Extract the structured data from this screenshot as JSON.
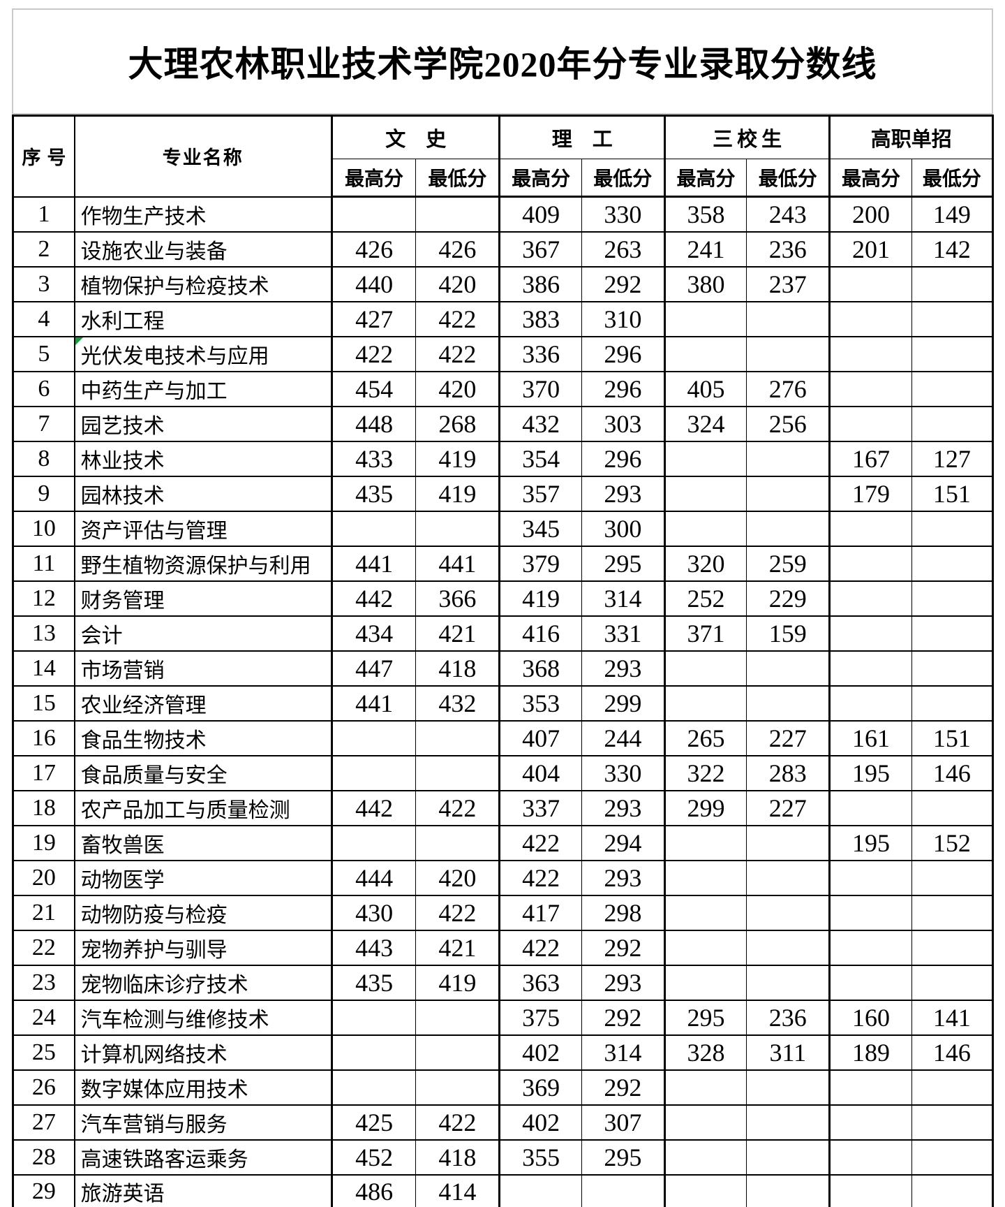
{
  "page": {
    "title": "大理农林职业技术学院2020年分专业录取分数线"
  },
  "colors": {
    "background": "#ffffff",
    "table_border": "#000000",
    "title_block_border": "#c9c9c9",
    "error_marker_green": "#189b3f"
  },
  "table": {
    "header": {
      "index_label": "序号",
      "major_label": "专业名称",
      "groups": [
        {
          "label": "文　史"
        },
        {
          "label": "理　工"
        },
        {
          "label": "三校生"
        },
        {
          "label": "高职单招"
        }
      ],
      "max_label": "最高分",
      "min_label": "最低分"
    },
    "rows": [
      {
        "no": "1",
        "major": "作物生产技术",
        "scores": [
          "",
          "",
          "409",
          "330",
          "358",
          "243",
          "200",
          "149"
        ]
      },
      {
        "no": "2",
        "major": "设施农业与装备",
        "scores": [
          "426",
          "426",
          "367",
          "263",
          "241",
          "236",
          "201",
          "142"
        ]
      },
      {
        "no": "3",
        "major": "植物保护与检疫技术",
        "scores": [
          "440",
          "420",
          "386",
          "292",
          "380",
          "237",
          "",
          ""
        ]
      },
      {
        "no": "4",
        "major": "水利工程",
        "scores": [
          "427",
          "422",
          "383",
          "310",
          "",
          "",
          "",
          ""
        ]
      },
      {
        "no": "5",
        "major": "光伏发电技术与应用",
        "scores": [
          "422",
          "422",
          "336",
          "296",
          "",
          "",
          "",
          ""
        ],
        "error_marker": true
      },
      {
        "no": "6",
        "major": "中药生产与加工",
        "scores": [
          "454",
          "420",
          "370",
          "296",
          "405",
          "276",
          "",
          ""
        ]
      },
      {
        "no": "7",
        "major": "园艺技术",
        "scores": [
          "448",
          "268",
          "432",
          "303",
          "324",
          "256",
          "",
          ""
        ]
      },
      {
        "no": "8",
        "major": "林业技术",
        "scores": [
          "433",
          "419",
          "354",
          "296",
          "",
          "",
          "167",
          "127"
        ]
      },
      {
        "no": "9",
        "major": "园林技术",
        "scores": [
          "435",
          "419",
          "357",
          "293",
          "",
          "",
          "179",
          "151"
        ]
      },
      {
        "no": "10",
        "major": "资产评估与管理",
        "scores": [
          "",
          "",
          "345",
          "300",
          "",
          "",
          "",
          ""
        ]
      },
      {
        "no": "11",
        "major": "野生植物资源保护与利用",
        "scores": [
          "441",
          "441",
          "379",
          "295",
          "320",
          "259",
          "",
          ""
        ]
      },
      {
        "no": "12",
        "major": "财务管理",
        "scores": [
          "442",
          "366",
          "419",
          "314",
          "252",
          "229",
          "",
          ""
        ]
      },
      {
        "no": "13",
        "major": "会计",
        "scores": [
          "434",
          "421",
          "416",
          "331",
          "371",
          "159",
          "",
          ""
        ]
      },
      {
        "no": "14",
        "major": "市场营销",
        "scores": [
          "447",
          "418",
          "368",
          "293",
          "",
          "",
          "",
          ""
        ]
      },
      {
        "no": "15",
        "major": "农业经济管理",
        "scores": [
          "441",
          "432",
          "353",
          "299",
          "",
          "",
          "",
          ""
        ]
      },
      {
        "no": "16",
        "major": "食品生物技术",
        "scores": [
          "",
          "",
          "407",
          "244",
          "265",
          "227",
          "161",
          "151"
        ]
      },
      {
        "no": "17",
        "major": "食品质量与安全",
        "scores": [
          "",
          "",
          "404",
          "330",
          "322",
          "283",
          "195",
          "146"
        ]
      },
      {
        "no": "18",
        "major": "农产品加工与质量检测",
        "scores": [
          "442",
          "422",
          "337",
          "293",
          "299",
          "227",
          "",
          ""
        ]
      },
      {
        "no": "19",
        "major": "畜牧兽医",
        "scores": [
          "",
          "",
          "422",
          "294",
          "",
          "",
          "195",
          "152"
        ]
      },
      {
        "no": "20",
        "major": "动物医学",
        "scores": [
          "444",
          "420",
          "422",
          "293",
          "",
          "",
          "",
          ""
        ]
      },
      {
        "no": "21",
        "major": "动物防疫与检疫",
        "scores": [
          "430",
          "422",
          "417",
          "298",
          "",
          "",
          "",
          ""
        ]
      },
      {
        "no": "22",
        "major": "宠物养护与驯导",
        "scores": [
          "443",
          "421",
          "422",
          "292",
          "",
          "",
          "",
          ""
        ]
      },
      {
        "no": "23",
        "major": "宠物临床诊疗技术",
        "scores": [
          "435",
          "419",
          "363",
          "293",
          "",
          "",
          "",
          ""
        ]
      },
      {
        "no": "24",
        "major": "汽车检测与维修技术",
        "scores": [
          "",
          "",
          "375",
          "292",
          "295",
          "236",
          "160",
          "141"
        ]
      },
      {
        "no": "25",
        "major": "计算机网络技术",
        "scores": [
          "",
          "",
          "402",
          "314",
          "328",
          "311",
          "189",
          "146"
        ]
      },
      {
        "no": "26",
        "major": "数字媒体应用技术",
        "scores": [
          "",
          "",
          "369",
          "292",
          "",
          "",
          "",
          ""
        ]
      },
      {
        "no": "27",
        "major": "汽车营销与服务",
        "scores": [
          "425",
          "422",
          "402",
          "307",
          "",
          "",
          "",
          ""
        ]
      },
      {
        "no": "28",
        "major": "高速铁路客运乘务",
        "scores": [
          "452",
          "418",
          "355",
          "295",
          "",
          "",
          "",
          ""
        ]
      },
      {
        "no": "29",
        "major": "旅游英语",
        "scores": [
          "486",
          "414",
          "",
          "",
          "",
          "",
          "",
          ""
        ]
      }
    ]
  }
}
